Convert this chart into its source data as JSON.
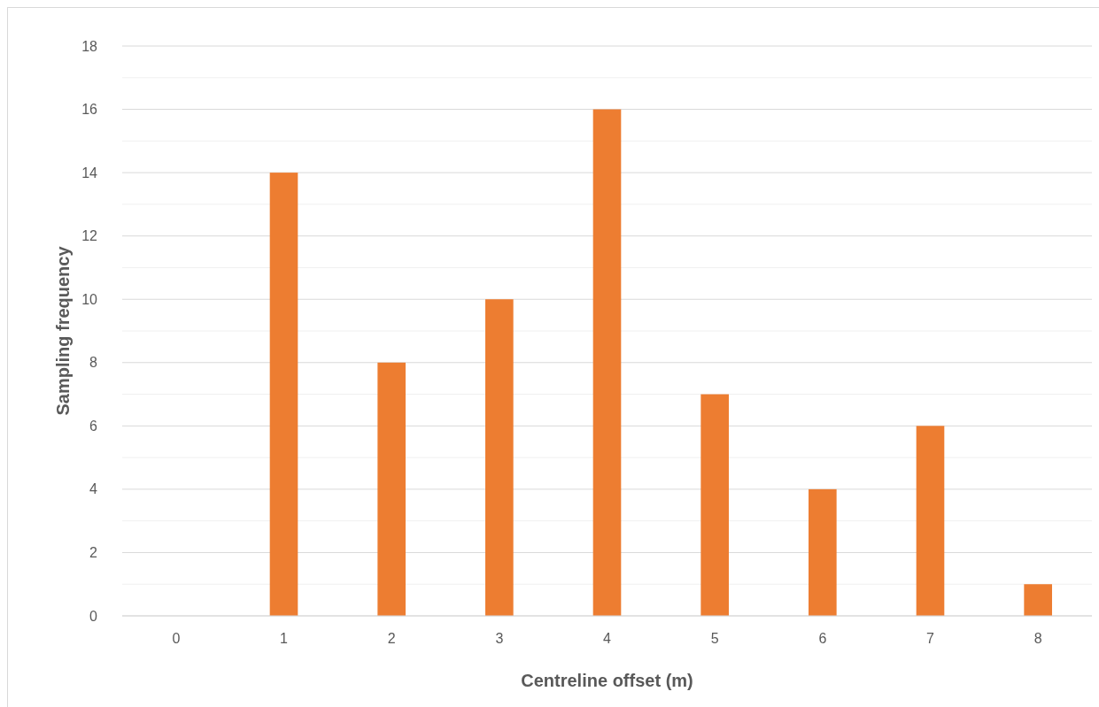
{
  "chart_data": {
    "type": "bar",
    "xlabel": "Centreline offset (m)",
    "ylabel": "Sampling frequency",
    "categories": [
      "0",
      "1",
      "2",
      "3",
      "4",
      "5",
      "6",
      "7",
      "8"
    ],
    "values": [
      0,
      14,
      8,
      10,
      16,
      7,
      4,
      6,
      1
    ],
    "color": "#ed7d31",
    "ylim": [
      0,
      18
    ],
    "yticks": [
      0,
      {
        "value": 1,
        "label": null
      },
      2,
      {
        "value": 3,
        "label": null
      },
      4,
      {
        "value": 5,
        "label": null
      },
      6,
      {
        "value": 7,
        "label": null
      },
      8,
      {
        "value": 9,
        "label": null
      },
      10,
      {
        "value": 11,
        "label": null
      },
      12,
      {
        "value": 13,
        "label": null
      },
      14,
      {
        "value": 15,
        "label": null
      },
      16,
      {
        "value": 17,
        "label": null
      },
      18
    ],
    "grid": true
  }
}
